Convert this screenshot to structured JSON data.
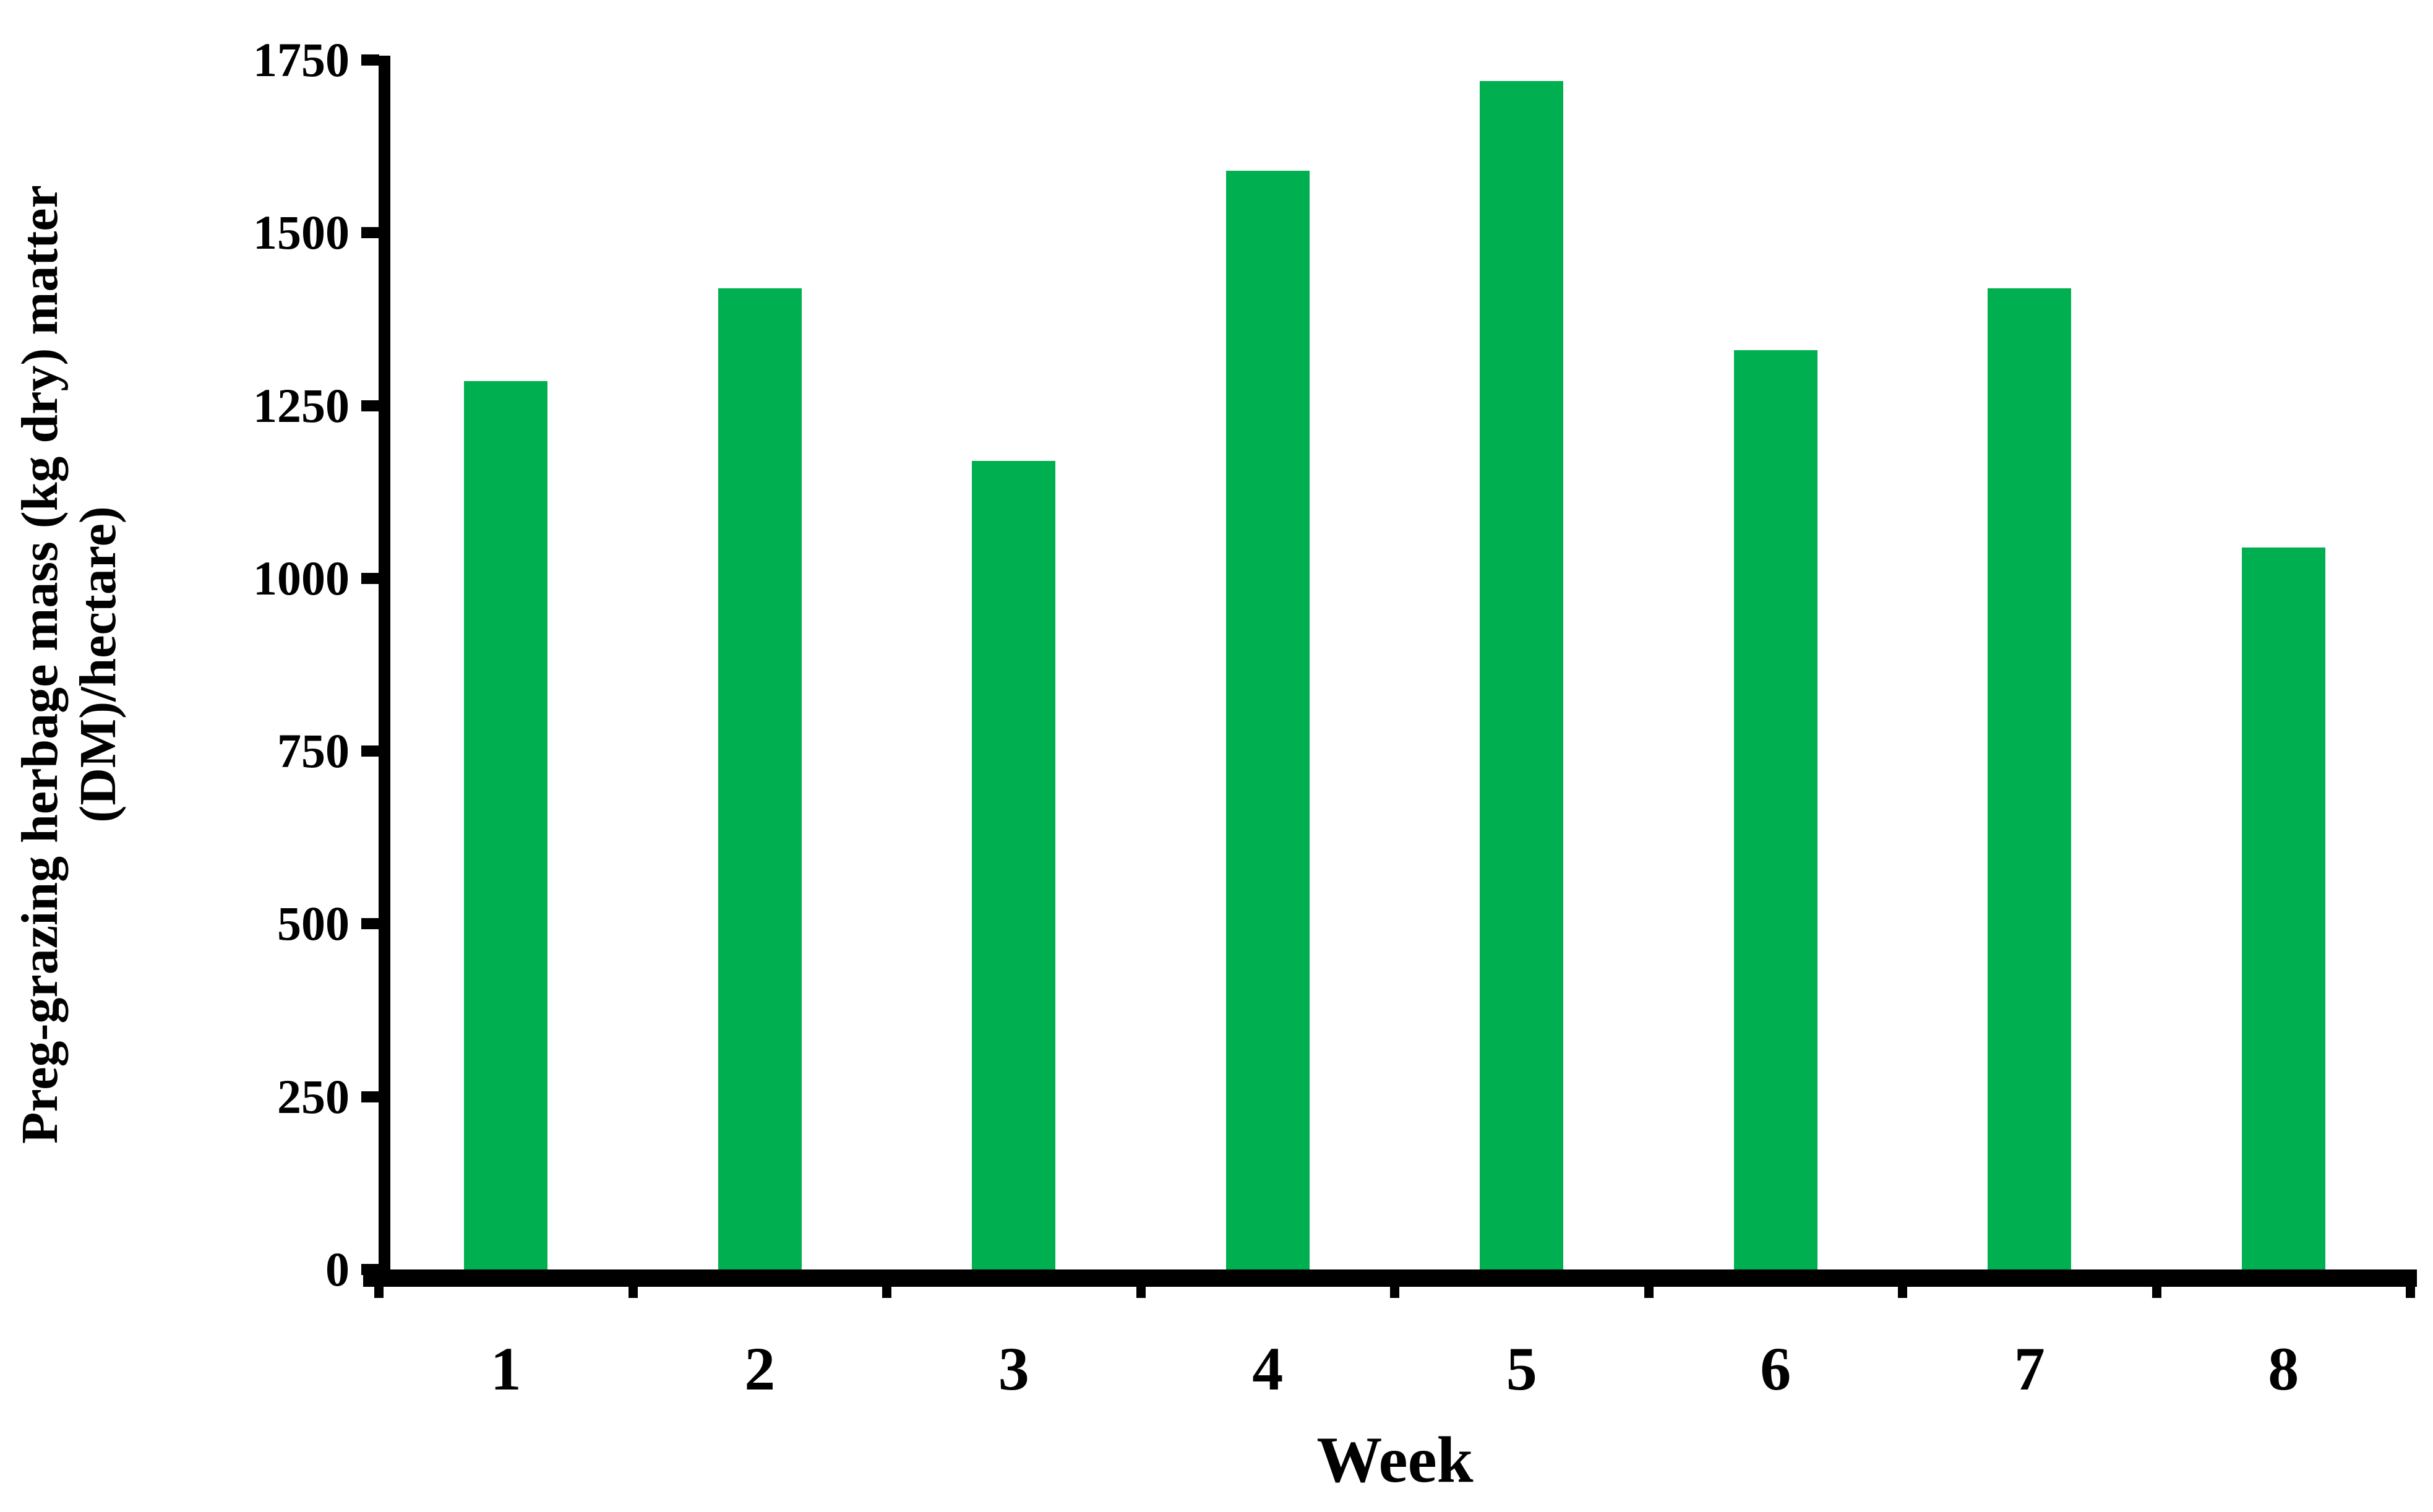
{
  "figure": {
    "background": "#ffffff"
  },
  "chart_data": {
    "type": "bar",
    "title": "",
    "xlabel": "Week",
    "ylabel_lines": [
      "Preg-grazing herbage mass (kg dry) matter",
      "(DM)/hectare)"
    ],
    "categories": [
      "1",
      "2",
      "3",
      "4",
      "5",
      "6",
      "7",
      "8"
    ],
    "values": [
      1285,
      1420,
      1170,
      1590,
      1720,
      1330,
      1420,
      1045
    ],
    "ylim": [
      0,
      1750
    ],
    "yticks": [
      0,
      250,
      500,
      750,
      1000,
      1250,
      1500,
      1750
    ],
    "bar_color": "#00B050",
    "axis_color": "#000000",
    "bar_width_fraction": 0.33,
    "grid": "off",
    "legend": "none"
  }
}
